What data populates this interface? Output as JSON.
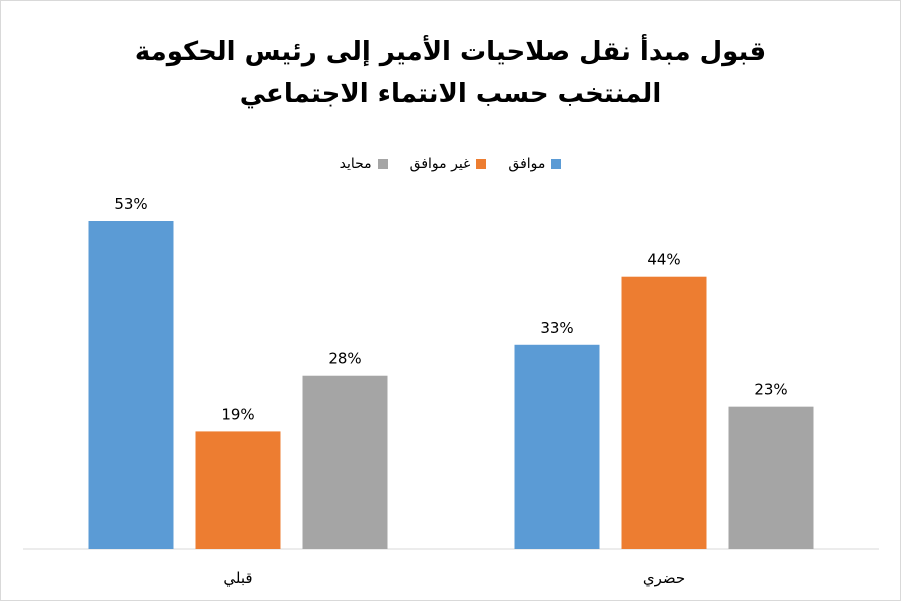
{
  "chart_data": {
    "type": "bar",
    "title_lines": [
      "قبول مبدأ نقل صلاحيات الأمير إلى رئيس الحكومة",
      "المنتخب حسب الانتماء الاجتماعي"
    ],
    "categories": [
      "قبلي",
      "حضري"
    ],
    "series": [
      {
        "name": "موافق",
        "values": [
          53,
          33
        ],
        "color": "#5b9bd5"
      },
      {
        "name": "غير موافق",
        "values": [
          19,
          44
        ],
        "color": "#ed7d31"
      },
      {
        "name": "محايد",
        "values": [
          28,
          23
        ],
        "color": "#a5a5a5"
      }
    ],
    "value_suffix": "%",
    "ylim": [
      0,
      60
    ],
    "grid": false,
    "legend_position": "top"
  }
}
